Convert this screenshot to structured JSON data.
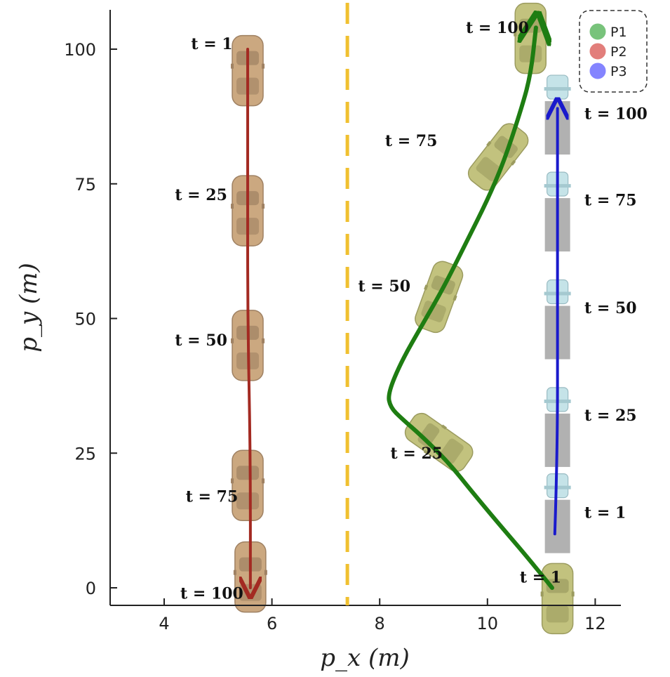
{
  "chart_data": {
    "type": "line",
    "title": "",
    "xlabel": "p_x (m)",
    "ylabel": "p_y (m)",
    "xlim": [
      3,
      12.5
    ],
    "ylim": [
      -3,
      107
    ],
    "xticks": [
      4,
      6,
      8,
      10,
      12
    ],
    "yticks": [
      0,
      25,
      50,
      75,
      100
    ],
    "divider_x": 7.4,
    "legend": {
      "location": "top-right",
      "entries": [
        {
          "label": "P1",
          "color": "#4caf50"
        },
        {
          "label": "P2",
          "color": "#d9534f"
        },
        {
          "label": "P3",
          "color": "#5b5bff"
        }
      ]
    },
    "series": [
      {
        "name": "P1",
        "color": "#1e7d12",
        "path": [
          [
            11.2,
            0
          ],
          [
            10.8,
            5
          ],
          [
            10.2,
            12
          ],
          [
            9.7,
            18
          ],
          [
            9.3,
            23
          ],
          [
            8.8,
            28
          ],
          [
            8.4,
            31.5
          ],
          [
            8.2,
            33.5
          ],
          [
            8.15,
            36
          ],
          [
            8.4,
            42
          ],
          [
            8.8,
            49
          ],
          [
            9.2,
            56
          ],
          [
            9.6,
            64
          ],
          [
            10.0,
            72
          ],
          [
            10.3,
            79
          ],
          [
            10.6,
            88
          ],
          [
            10.8,
            95
          ],
          [
            10.9,
            104
          ]
        ],
        "cars": [
          {
            "t": 1,
            "x": 11.3,
            "y": -2,
            "angle": 0
          },
          {
            "t": 25,
            "x": 9.1,
            "y": 27,
            "angle": -55
          },
          {
            "t": 50,
            "x": 9.1,
            "y": 54,
            "angle": 20
          },
          {
            "t": 75,
            "x": 10.2,
            "y": 80,
            "angle": 38
          },
          {
            "t": 100,
            "x": 10.8,
            "y": 102,
            "angle": 0
          }
        ],
        "labels": [
          {
            "text": "t = 1",
            "x": 10.6,
            "y": 1
          },
          {
            "text": "t = 25",
            "x": 8.2,
            "y": 24
          },
          {
            "text": "t = 50",
            "x": 7.6,
            "y": 55
          },
          {
            "text": "t = 75",
            "x": 8.1,
            "y": 82
          },
          {
            "text": "t = 100",
            "x": 9.6,
            "y": 103
          }
        ]
      },
      {
        "name": "P2",
        "color": "#a32a22",
        "path": [
          [
            5.55,
            100
          ],
          [
            5.55,
            75
          ],
          [
            5.55,
            50
          ],
          [
            5.6,
            25
          ],
          [
            5.6,
            0
          ]
        ],
        "cars": [
          {
            "t": 1,
            "x": 5.55,
            "y": 96,
            "angle": 0
          },
          {
            "t": 25,
            "x": 5.55,
            "y": 70,
            "angle": 0
          },
          {
            "t": 50,
            "x": 5.55,
            "y": 45,
            "angle": 0
          },
          {
            "t": 75,
            "x": 5.55,
            "y": 19,
            "angle": 0
          },
          {
            "t": 100,
            "x": 5.6,
            "y": 2,
            "angle": 0
          }
        ],
        "labels": [
          {
            "text": "t = 1",
            "x": 4.5,
            "y": 100
          },
          {
            "text": "t = 25",
            "x": 4.2,
            "y": 72
          },
          {
            "text": "t = 50",
            "x": 4.2,
            "y": 45
          },
          {
            "text": "t = 75",
            "x": 4.4,
            "y": 16
          },
          {
            "text": "t = 100",
            "x": 4.3,
            "y": -2
          }
        ]
      },
      {
        "name": "P3",
        "color": "#1a1acc",
        "path": [
          [
            11.25,
            10
          ],
          [
            11.3,
            25
          ],
          [
            11.3,
            50
          ],
          [
            11.3,
            75
          ],
          [
            11.3,
            89
          ]
        ],
        "trucks": [
          {
            "t": 1,
            "x": 11.3,
            "y": 14
          },
          {
            "t": 25,
            "x": 11.3,
            "y": 30
          },
          {
            "t": 50,
            "x": 11.3,
            "y": 50
          },
          {
            "t": 75,
            "x": 11.3,
            "y": 70
          },
          {
            "t": 100,
            "x": 11.3,
            "y": 88
          }
        ],
        "labels": [
          {
            "text": "t = 1",
            "x": 11.8,
            "y": 13
          },
          {
            "text": "t = 25",
            "x": 11.8,
            "y": 31
          },
          {
            "text": "t = 50",
            "x": 11.8,
            "y": 51
          },
          {
            "text": "t = 75",
            "x": 11.8,
            "y": 71
          },
          {
            "text": "t = 100",
            "x": 11.8,
            "y": 87
          }
        ]
      }
    ]
  }
}
